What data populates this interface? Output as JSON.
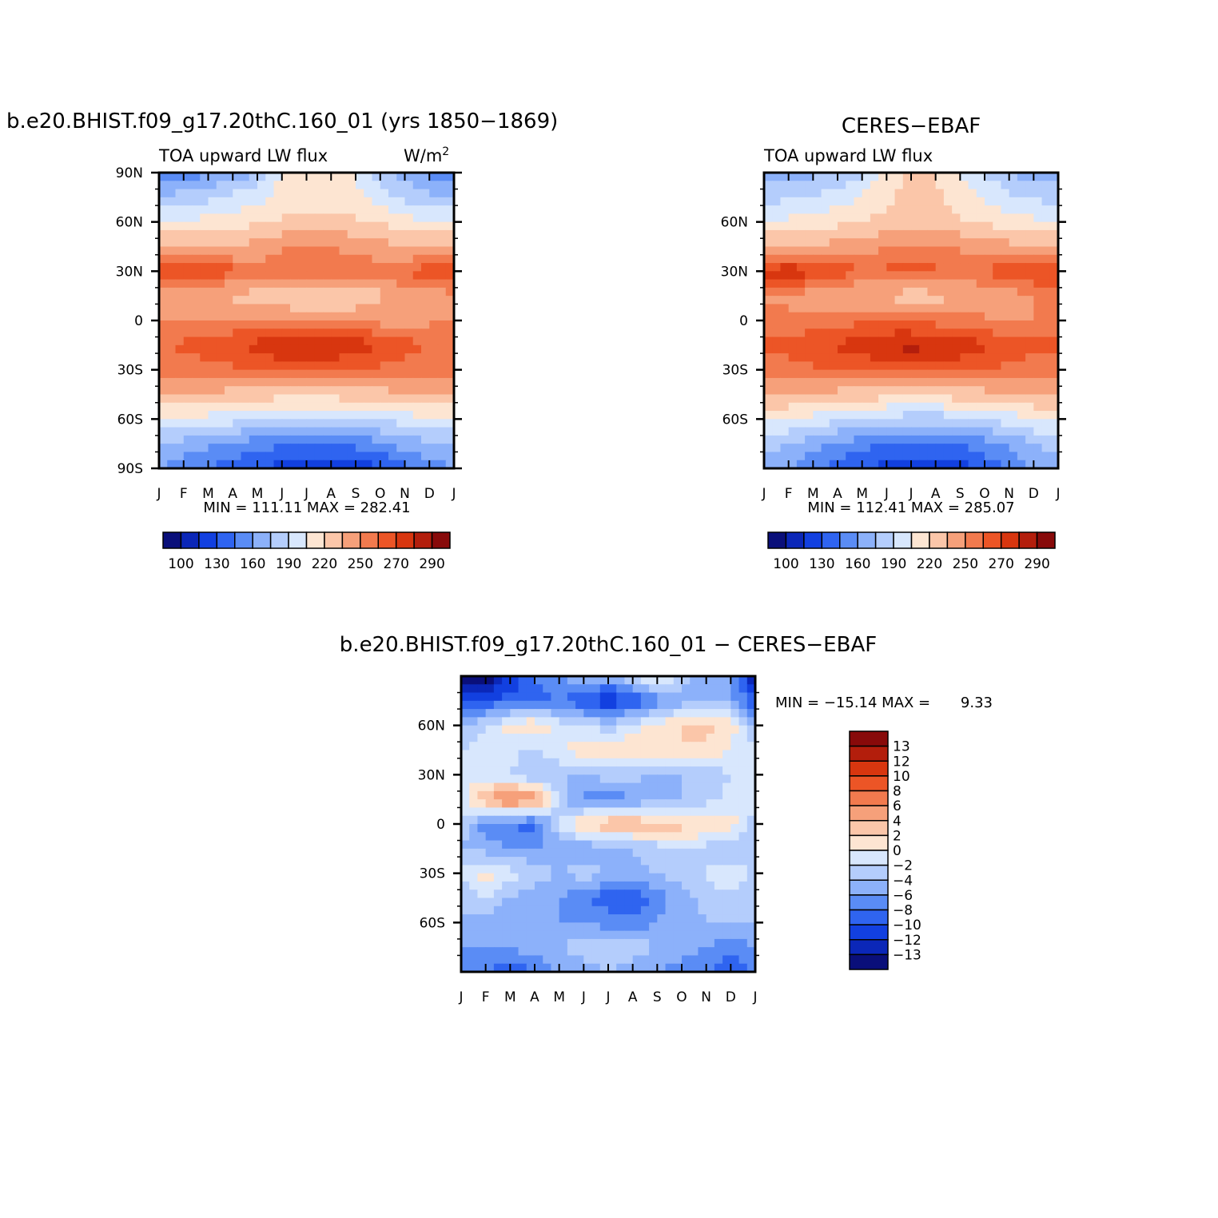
{
  "colors": {
    "seq": [
      "#0a0f7a",
      "#0b27b8",
      "#1240e0",
      "#2f64f0",
      "#5a8cf5",
      "#8cb1fa",
      "#b4cdfc",
      "#d8e7fd",
      "#fde5d2",
      "#fbc6a9",
      "#f6a07a",
      "#f27a4e",
      "#ec5526",
      "#d8360f",
      "#b31e0c",
      "#880a0a"
    ],
    "diff": [
      "#0a0f7a",
      "#0b27b8",
      "#1240e0",
      "#2f64f0",
      "#5a8cf5",
      "#8cb1fa",
      "#b4cdfc",
      "#d8e7fd",
      "#fde5d2",
      "#fbc6a9",
      "#f6a07a",
      "#f27a4e",
      "#ec5526",
      "#d8360f",
      "#b31e0c",
      "#880a0a"
    ]
  },
  "chart_data": [
    {
      "type": "heatmap",
      "id": "model",
      "title": "b.e20.BHIST.f09_g17.20thC.160_01 (yrs 1850−1869)",
      "left_string": "TOA upward LW flux",
      "right_string": "W/m",
      "right_string_sup": "2",
      "x_tick_labels": [
        "J",
        "F",
        "M",
        "A",
        "M",
        "J",
        "J",
        "A",
        "S",
        "O",
        "N",
        "D",
        "J"
      ],
      "y_tick_labels": [
        "90N",
        "60N",
        "30N",
        "0",
        "30S",
        "60S",
        "90S"
      ],
      "y_tick_values": [
        90,
        60,
        30,
        0,
        -30,
        -60,
        -90
      ],
      "xlim": [
        0,
        12
      ],
      "ylim": [
        -90,
        90
      ],
      "stats": "MIN = 111.11 MAX = 282.41",
      "colorbar_labels": [
        "100",
        "130",
        "160",
        "190",
        "220",
        "250",
        "270",
        "290"
      ],
      "cell_values": [
        [
          150,
          152,
          158,
          166,
          175,
          205,
          208,
          212,
          205,
          182,
          168,
          154,
          150
        ],
        [
          178,
          180,
          186,
          194,
          200,
          212,
          215,
          214,
          208,
          196,
          186,
          178,
          178
        ],
        [
          205,
          207,
          210,
          214,
          218,
          222,
          224,
          224,
          222,
          218,
          212,
          206,
          205
        ],
        [
          236,
          235,
          234,
          236,
          240,
          248,
          252,
          250,
          246,
          240,
          236,
          236,
          236
        ],
        [
          272,
          272,
          270,
          264,
          258,
          258,
          260,
          258,
          256,
          258,
          262,
          266,
          272
        ],
        [
          246,
          242,
          236,
          232,
          228,
          220,
          214,
          216,
          222,
          232,
          240,
          246,
          246
        ],
        [
          248,
          250,
          248,
          250,
          252,
          252,
          252,
          250,
          248,
          246,
          246,
          248,
          248
        ],
        [
          260,
          262,
          266,
          270,
          274,
          280,
          282,
          280,
          276,
          270,
          264,
          260,
          260
        ],
        [
          254,
          255,
          256,
          258,
          260,
          262,
          262,
          262,
          260,
          258,
          256,
          254,
          254
        ],
        [
          232,
          232,
          232,
          230,
          228,
          226,
          226,
          226,
          228,
          230,
          232,
          232,
          232
        ],
        [
          205,
          203,
          200,
          196,
          190,
          186,
          184,
          184,
          186,
          192,
          198,
          204,
          205
        ],
        [
          175,
          170,
          164,
          158,
          152,
          148,
          146,
          146,
          150,
          158,
          166,
          172,
          175
        ],
        [
          160,
          152,
          144,
          136,
          130,
          124,
          120,
          118,
          120,
          128,
          140,
          152,
          160
        ]
      ]
    },
    {
      "type": "heatmap",
      "id": "obs",
      "title": "CERES−EBAF",
      "left_string": "TOA upward LW flux",
      "x_tick_labels": [
        "J",
        "F",
        "M",
        "A",
        "M",
        "J",
        "J",
        "A",
        "S",
        "O",
        "N",
        "D",
        "J"
      ],
      "y_tick_labels": [
        "60N",
        "30N",
        "0",
        "30S",
        "60S"
      ],
      "y_tick_values": [
        60,
        30,
        0,
        -30,
        -60
      ],
      "xlim": [
        0,
        12
      ],
      "ylim": [
        -90,
        90
      ],
      "stats": "MIN = 112.41 MAX = 285.07",
      "colorbar_labels": [
        "100",
        "130",
        "160",
        "190",
        "220",
        "250",
        "270",
        "290"
      ],
      "cell_values": [
        [
          165,
          168,
          172,
          178,
          188,
          212,
          225,
          220,
          205,
          188,
          175,
          168,
          165
        ],
        [
          185,
          188,
          192,
          198,
          206,
          216,
          226,
          222,
          214,
          204,
          194,
          188,
          185
        ],
        [
          206,
          208,
          212,
          216,
          220,
          224,
          228,
          226,
          222,
          218,
          212,
          208,
          206
        ],
        [
          238,
          238,
          238,
          240,
          244,
          250,
          254,
          252,
          248,
          244,
          240,
          238,
          238
        ],
        [
          274,
          278,
          274,
          266,
          262,
          262,
          262,
          262,
          260,
          262,
          266,
          270,
          274
        ],
        [
          250,
          248,
          244,
          240,
          236,
          232,
          228,
          230,
          234,
          240,
          246,
          250,
          250
        ],
        [
          250,
          252,
          254,
          256,
          258,
          258,
          256,
          256,
          254,
          252,
          248,
          250,
          250
        ],
        [
          262,
          264,
          268,
          272,
          276,
          282,
          284,
          282,
          278,
          272,
          266,
          262,
          262
        ],
        [
          256,
          256,
          258,
          260,
          262,
          264,
          264,
          264,
          262,
          260,
          258,
          256,
          256
        ],
        [
          234,
          234,
          232,
          230,
          228,
          226,
          226,
          226,
          228,
          230,
          232,
          234,
          234
        ],
        [
          210,
          206,
          200,
          194,
          188,
          184,
          182,
          182,
          184,
          190,
          198,
          206,
          210
        ],
        [
          180,
          174,
          166,
          158,
          150,
          144,
          142,
          142,
          146,
          154,
          164,
          174,
          180
        ],
        [
          170,
          160,
          148,
          138,
          130,
          124,
          120,
          118,
          122,
          132,
          146,
          160,
          170
        ]
      ]
    },
    {
      "type": "heatmap",
      "id": "diff",
      "title": "b.e20.BHIST.f09_g17.20thC.160_01 − CERES−EBAF",
      "x_tick_labels": [
        "J",
        "F",
        "M",
        "A",
        "M",
        "J",
        "J",
        "A",
        "S",
        "O",
        "N",
        "D",
        "J"
      ],
      "y_tick_labels": [
        "60N",
        "30N",
        "0",
        "30S",
        "60S"
      ],
      "y_tick_values": [
        60,
        30,
        0,
        -30,
        -60
      ],
      "xlim": [
        0,
        12
      ],
      "ylim": [
        -90,
        90
      ],
      "stats_label": "MIN = −15.14 MAX =",
      "stats_max": "9.33",
      "colorbar_labels": [
        "13",
        "12",
        "10",
        "8",
        "6",
        "4",
        "2",
        "0",
        "−2",
        "−4",
        "−6",
        "−8",
        "−10",
        "−12",
        "−13"
      ],
      "cell_values": [
        [
          -14,
          -15,
          -12,
          -8,
          -6,
          -4,
          -5,
          -2,
          1,
          -3,
          -5,
          -6,
          -14
        ],
        [
          -10,
          -10,
          -9,
          -9,
          -8,
          -10,
          -12,
          -10,
          -7,
          -5,
          -4,
          -5,
          -10
        ],
        [
          -4,
          -2,
          1,
          2,
          -1,
          -2,
          -3,
          -1,
          1,
          2,
          3,
          1,
          -4
        ],
        [
          -2,
          -1,
          -1,
          -3,
          0,
          1,
          1,
          2,
          1,
          2,
          1,
          0,
          -2
        ],
        [
          -2,
          -1,
          -2,
          -4,
          -4,
          -4,
          -3,
          -3,
          -5,
          -4,
          -3,
          -2,
          -2
        ],
        [
          -1,
          4,
          7,
          6,
          -3,
          -7,
          -8,
          -6,
          -5,
          -4,
          -3,
          -1,
          -1
        ],
        [
          -3,
          -7,
          -8,
          -9,
          -2,
          3,
          4,
          4,
          3,
          3,
          2,
          1,
          -3
        ],
        [
          -4,
          -5,
          -6,
          -6,
          -6,
          -6,
          -5,
          -4,
          -3,
          -2,
          -3,
          -4,
          -4
        ],
        [
          -2,
          1,
          -1,
          -3,
          -4,
          -3,
          -4,
          -5,
          -4,
          -3,
          -2,
          0,
          -2
        ],
        [
          -4,
          -2,
          -4,
          -5,
          -6,
          -8,
          -9,
          -10,
          -7,
          -5,
          -3,
          -3,
          -4
        ],
        [
          -4,
          -5,
          -6,
          -6,
          -6,
          -6,
          -7,
          -7,
          -6,
          -5,
          -4,
          -4,
          -4
        ],
        [
          -6,
          -6,
          -6,
          -5,
          -4,
          -3,
          -2,
          -3,
          -4,
          -5,
          -6,
          -8,
          -6
        ],
        [
          -7,
          -8,
          -9,
          -8,
          -6,
          -5,
          -4,
          -5,
          -6,
          -7,
          -8,
          -10,
          -7
        ]
      ]
    }
  ]
}
